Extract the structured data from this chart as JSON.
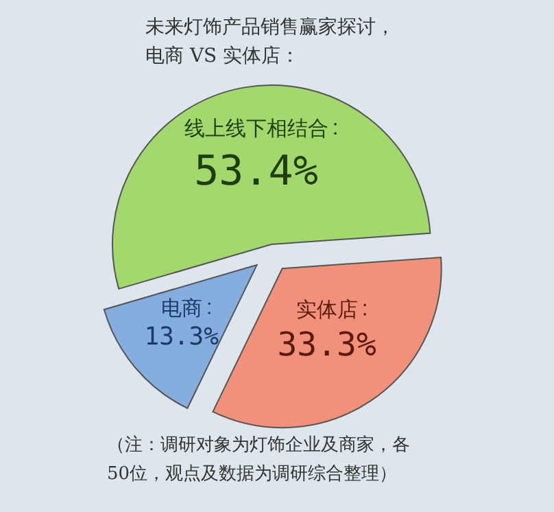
{
  "chart_data": {
    "type": "pie",
    "title": "未来灯饰产品销售赢家探讨，电商 VS 实体店：",
    "categories": [
      "线上线下相结合",
      "电商",
      "实体店"
    ],
    "values": [
      53.4,
      13.3,
      33.3
    ],
    "value_labels": [
      "53.4%",
      "13.3%",
      "33.3%"
    ],
    "colors": [
      "#a3d86c",
      "#85ade0",
      "#f2917a"
    ],
    "annotations": [
      "（注：调研对象为灯饰企业及商家，各50位，观点及数据为调研综合整理）"
    ]
  }
}
